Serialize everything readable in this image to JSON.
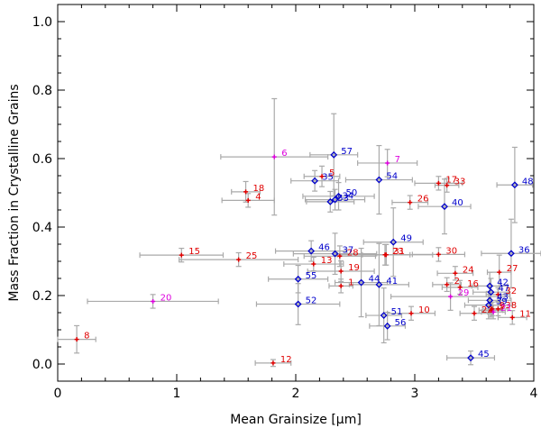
{
  "chart_data": {
    "type": "scatter",
    "title": "",
    "xlabel": "Mean Grainsize [μm]",
    "ylabel": "Mass Fraction in Crystalline Grains",
    "xlim": [
      0,
      4
    ],
    "ylim": [
      -0.05,
      1.05
    ],
    "xticks": [
      0,
      1,
      2,
      3,
      4
    ],
    "yticks": [
      0.0,
      0.2,
      0.4,
      0.6,
      0.8,
      1.0
    ],
    "xtick_labels": [
      "0",
      "1",
      "2",
      "3",
      "4"
    ],
    "ytick_labels": [
      "0.0",
      "0.2",
      "0.4",
      "0.6",
      "0.8",
      "1.0"
    ],
    "grid": false,
    "error_bar_color": "#aaaaaa",
    "series": [
      {
        "name": "red",
        "color": "#e00000",
        "marker": "plus",
        "points": [
          {
            "id": "1",
            "x": 2.38,
            "y": 0.228,
            "xerr": 0.1,
            "yerr": 0.02
          },
          {
            "id": "2",
            "x": 3.27,
            "y": 0.232,
            "xerr": 0.12,
            "yerr": 0.02
          },
          {
            "id": "3",
            "x": 3.64,
            "y": 0.157,
            "xerr": 0.1,
            "yerr": 0.02
          },
          {
            "id": "4",
            "x": 1.6,
            "y": 0.478,
            "xerr": 0.22,
            "yerr": 0.02
          },
          {
            "id": "5",
            "x": 2.22,
            "y": 0.548,
            "xerr": 0.15,
            "yerr": 0.03
          },
          {
            "id": "8",
            "x": 0.16,
            "y": 0.072,
            "xerr": 0.16,
            "yerr": 0.04
          },
          {
            "id": "9",
            "x": 3.65,
            "y": 0.161,
            "xerr": 0.08,
            "yerr": 0.02
          },
          {
            "id": "10",
            "x": 2.97,
            "y": 0.148,
            "xerr": 0.2,
            "yerr": 0.02
          },
          {
            "id": "11",
            "x": 3.82,
            "y": 0.136,
            "xerr": 0.12,
            "yerr": 0.02
          },
          {
            "id": "12",
            "x": 1.81,
            "y": 0.003,
            "xerr": 0.15,
            "yerr": 0.01
          },
          {
            "id": "13",
            "x": 2.15,
            "y": 0.292,
            "xerr": 0.25,
            "yerr": 0.02
          },
          {
            "id": "15",
            "x": 1.04,
            "y": 0.318,
            "xerr": 0.35,
            "yerr": 0.02
          },
          {
            "id": "16",
            "x": 3.38,
            "y": 0.224,
            "xerr": 0.15,
            "yerr": 0.02
          },
          {
            "id": "17",
            "x": 3.2,
            "y": 0.528,
            "xerr": 0.2,
            "yerr": 0.02
          },
          {
            "id": "18",
            "x": 1.58,
            "y": 0.503,
            "xerr": 0.12,
            "yerr": 0.03
          },
          {
            "id": "19",
            "x": 2.38,
            "y": 0.271,
            "xerr": 0.28,
            "yerr": 0.03
          },
          {
            "id": "22",
            "x": 3.5,
            "y": 0.148,
            "xerr": 0.12,
            "yerr": 0.02
          },
          {
            "id": "23",
            "x": 2.75,
            "y": 0.319,
            "xerr": 0.4,
            "yerr": 0.03
          },
          {
            "id": "24",
            "x": 3.34,
            "y": 0.265,
            "xerr": 0.15,
            "yerr": 0.02
          },
          {
            "id": "25",
            "x": 1.52,
            "y": 0.305,
            "xerr": 0.5,
            "yerr": 0.02
          },
          {
            "id": "26",
            "x": 2.96,
            "y": 0.472,
            "xerr": 0.15,
            "yerr": 0.02
          },
          {
            "id": "27",
            "x": 3.71,
            "y": 0.268,
            "xerr": 0.1,
            "yerr": 0.05
          },
          {
            "id": "28",
            "x": 2.37,
            "y": 0.315,
            "xerr": 0.3,
            "yerr": 0.03
          },
          {
            "id": "30",
            "x": 3.2,
            "y": 0.32,
            "xerr": 0.22,
            "yerr": 0.02
          },
          {
            "id": "31",
            "x": 2.76,
            "y": 0.319,
            "xerr": 0.2,
            "yerr": 0.03
          },
          {
            "id": "32",
            "x": 3.7,
            "y": 0.203,
            "xerr": 0.1,
            "yerr": 0.02
          },
          {
            "id": "33",
            "x": 3.27,
            "y": 0.522,
            "xerr": 0.1,
            "yerr": 0.02
          },
          {
            "id": "38",
            "x": 3.7,
            "y": 0.161,
            "xerr": 0.08,
            "yerr": 0.02
          }
        ]
      },
      {
        "name": "blue",
        "color": "#0000cc",
        "marker": "diamond",
        "points": [
          {
            "id": "35",
            "x": 2.16,
            "y": 0.535,
            "xerr": 0.2,
            "yerr": 0.03
          },
          {
            "id": "36",
            "x": 3.81,
            "y": 0.323,
            "xerr": 0.25,
            "yerr": 0.1
          },
          {
            "id": "37",
            "x": 2.33,
            "y": 0.322,
            "xerr": 0.35,
            "yerr": 0.06
          },
          {
            "id": "39",
            "x": 3.62,
            "y": 0.172,
            "xerr": 0.2,
            "yerr": 0.04
          },
          {
            "id": "40",
            "x": 3.25,
            "y": 0.46,
            "xerr": 0.22,
            "yerr": 0.08
          },
          {
            "id": "41",
            "x": 2.7,
            "y": 0.232,
            "xerr": 0.25,
            "yerr": 0.12
          },
          {
            "id": "42",
            "x": 3.63,
            "y": 0.228,
            "xerr": 0.15,
            "yerr": 0.04
          },
          {
            "id": "43",
            "x": 3.63,
            "y": 0.186,
            "xerr": 0.18,
            "yerr": 0.04
          },
          {
            "id": "44",
            "x": 2.55,
            "y": 0.238,
            "xerr": 0.22,
            "yerr": 0.1
          },
          {
            "id": "45",
            "x": 3.47,
            "y": 0.018,
            "xerr": 0.2,
            "yerr": 0.02
          },
          {
            "id": "46",
            "x": 2.13,
            "y": 0.33,
            "xerr": 0.3,
            "yerr": 0.03
          },
          {
            "id": "47",
            "x": 3.64,
            "y": 0.21,
            "xerr": 0.15,
            "yerr": 0.04
          },
          {
            "id": "48",
            "x": 3.84,
            "y": 0.523,
            "xerr": 0.15,
            "yerr": 0.11
          },
          {
            "id": "49",
            "x": 2.82,
            "y": 0.356,
            "xerr": 0.25,
            "yerr": 0.1
          },
          {
            "id": "50",
            "x": 2.36,
            "y": 0.49,
            "xerr": 0.3,
            "yerr": 0.04
          },
          {
            "id": "51",
            "x": 2.74,
            "y": 0.142,
            "xerr": 0.15,
            "yerr": 0.08
          },
          {
            "id": "52",
            "x": 2.02,
            "y": 0.175,
            "xerr": 0.35,
            "yerr": 0.06
          },
          {
            "id": "53",
            "x": 2.29,
            "y": 0.474,
            "xerr": 0.2,
            "yerr": 0.03
          },
          {
            "id": "54",
            "x": 2.7,
            "y": 0.538,
            "xerr": 0.28,
            "yerr": 0.1
          },
          {
            "id": "55",
            "x": 2.02,
            "y": 0.248,
            "xerr": 0.25,
            "yerr": 0.04
          },
          {
            "id": "56",
            "x": 2.77,
            "y": 0.111,
            "xerr": 0.15,
            "yerr": 0.04
          },
          {
            "id": "57",
            "x": 2.32,
            "y": 0.611,
            "xerr": 0.2,
            "yerr": 0.12
          },
          {
            "id": "34",
            "x": 2.33,
            "y": 0.48,
            "xerr": 0.25,
            "yerr": 0.03
          }
        ]
      },
      {
        "name": "magenta",
        "color": "#dd00dd",
        "marker": "plus",
        "points": [
          {
            "id": "6",
            "x": 1.82,
            "y": 0.605,
            "xerr": 0.45,
            "yerr": 0.17
          },
          {
            "id": "7",
            "x": 2.77,
            "y": 0.587,
            "xerr": 0.25,
            "yerr": 0.04
          },
          {
            "id": "20",
            "x": 0.8,
            "y": 0.183,
            "xerr": 0.55,
            "yerr": 0.02
          },
          {
            "id": "21",
            "x": 3.66,
            "y": 0.152,
            "xerr": 0.1,
            "yerr": 0.02
          },
          {
            "id": "29",
            "x": 3.3,
            "y": 0.197,
            "xerr": 0.5,
            "yerr": 0.04
          }
        ]
      }
    ]
  }
}
